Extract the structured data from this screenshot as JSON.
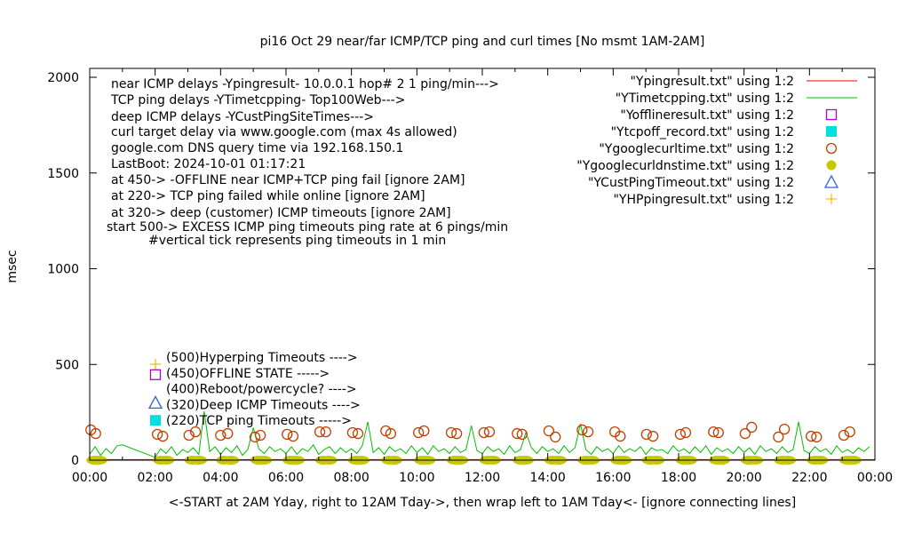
{
  "chart_data": {
    "type": "line",
    "title": "pi16 Oct 29  near/far ICMP/TCP ping and curl times [No msmt 1AM-2AM]",
    "xlabel": "<-START at 2AM Yday, right to 12AM Tday->, then wrap left to 1AM Tday<- [ignore connecting lines]",
    "ylabel": "msec",
    "xlim": [
      "00:00",
      "24:00"
    ],
    "ylim": [
      0,
      2000
    ],
    "x_ticks": [
      "00:00",
      "02:00",
      "04:00",
      "06:00",
      "08:00",
      "10:00",
      "12:00",
      "14:00",
      "16:00",
      "18:00",
      "20:00",
      "22:00",
      "00:00"
    ],
    "y_ticks": [
      0,
      500,
      1000,
      1500,
      2000
    ],
    "grid": false,
    "legend_position": "top-right",
    "annotations": [
      "near ICMP delays -Ypingresult- 10.0.0.1 hop# 2 1 ping/min--->",
      "TCP ping delays -YTimetcpping- Top100Web--->",
      "deep ICMP delays -YCustPingSiteTimes--->",
      "curl target delay via www.google.com (max 4s allowed)",
      "google.com DNS query time via 192.168.150.1",
      "LastBoot: 2024-10-01 01:17:21",
      "at 450-> -OFFLINE near ICMP+TCP ping fail [ignore 2AM]",
      "at 220-> TCP ping failed while online [ignore 2AM]",
      "at 320-> deep (customer) ICMP timeouts [ignore 2AM]",
      "start 500-> EXCESS ICMP ping timeouts ping rate at 6 pings/min",
      "#vertical tick represents ping timeouts in 1 min"
    ],
    "marker_key": [
      {
        "label": "(500)Hyperping Timeouts ---->",
        "marker": "plus",
        "color": "#f5b800"
      },
      {
        "label": "(450)OFFLINE STATE ----->",
        "marker": "open-square",
        "color": "#b000e0"
      },
      {
        "label": "(400)Reboot/powercycle? ---->",
        "marker": "none",
        "color": ""
      },
      {
        "label": "(320)Deep ICMP Timeouts ---->",
        "marker": "open-triangle",
        "color": "#3060e0"
      },
      {
        "label": "(220)TCP ping Timeouts ----->",
        "marker": "filled-square",
        "color": "#00e0e0"
      }
    ],
    "series": [
      {
        "name": "\"Ypingresult.txt\" using 1:2",
        "style": "line",
        "color": "#ff0000",
        "interval_minutes": 60,
        "values": [
          3,
          3,
          3,
          3,
          3,
          3,
          3,
          3,
          3,
          3,
          3,
          3,
          3,
          3,
          3,
          3,
          3,
          3,
          3,
          3,
          3,
          3,
          3,
          3,
          3
        ]
      },
      {
        "name": "\"YTimetcpping.txt\" using 1:2",
        "style": "line",
        "color": "#00c000",
        "interval_minutes": 10,
        "values": [
          30,
          70,
          25,
          60,
          35,
          75,
          80,
          null,
          null,
          null,
          null,
          null,
          15,
          60,
          35,
          70,
          25,
          55,
          40,
          65,
          30,
          255,
          45,
          70,
          30,
          65,
          40,
          75,
          25,
          55,
          170,
          60,
          35,
          70,
          45,
          60,
          35,
          70,
          30,
          60,
          45,
          80,
          30,
          55,
          70,
          35,
          65,
          40,
          60,
          35,
          75,
          200,
          40,
          65,
          30,
          70,
          45,
          60,
          35,
          75,
          40,
          65,
          30,
          75,
          45,
          60,
          35,
          70,
          40,
          55,
          180,
          50,
          35,
          70,
          45,
          60,
          30,
          75,
          40,
          55,
          145,
          65,
          35,
          70,
          45,
          60,
          35,
          75,
          40,
          65,
          190,
          55,
          30,
          70,
          45,
          60,
          35,
          75,
          40,
          60,
          45,
          70,
          30,
          65,
          50,
          55,
          35,
          75,
          45,
          60,
          35,
          70,
          40,
          75,
          30,
          65,
          45,
          60,
          35,
          70,
          40,
          65,
          30,
          75,
          45,
          60,
          35,
          70,
          40,
          55,
          200,
          50,
          35,
          70,
          45,
          60,
          30,
          75,
          40,
          55,
          35,
          65,
          45,
          70
        ]
      },
      {
        "name": "\"Yofflineresult.txt\" using 1:2",
        "style": "open-square",
        "color": "#b000e0",
        "points": []
      },
      {
        "name": "\"Ytcpoff_record.txt\" using 1:2",
        "style": "filled-square",
        "color": "#00e0e0",
        "points": []
      },
      {
        "name": "\"Ygooglecurltime.txt\" using 1:2",
        "style": "open-circle",
        "color": "#c04000",
        "points": [
          [
            "00:02",
            158
          ],
          [
            "00:11",
            139
          ],
          [
            "02:04",
            135
          ],
          [
            "02:14",
            125
          ],
          [
            "03:02",
            130
          ],
          [
            "03:14",
            148
          ],
          [
            "04:00",
            130
          ],
          [
            "04:13",
            139
          ],
          [
            "05:03",
            121
          ],
          [
            "05:13",
            130
          ],
          [
            "06:02",
            135
          ],
          [
            "06:13",
            125
          ],
          [
            "07:02",
            148
          ],
          [
            "07:13",
            148
          ],
          [
            "08:02",
            144
          ],
          [
            "08:12",
            139
          ],
          [
            "09:03",
            153
          ],
          [
            "09:12",
            139
          ],
          [
            "10:03",
            144
          ],
          [
            "10:13",
            153
          ],
          [
            "11:03",
            144
          ],
          [
            "11:13",
            139
          ],
          [
            "12:03",
            144
          ],
          [
            "12:13",
            148
          ],
          [
            "13:04",
            139
          ],
          [
            "13:13",
            135
          ],
          [
            "14:02",
            153
          ],
          [
            "14:14",
            121
          ],
          [
            "15:03",
            158
          ],
          [
            "15:14",
            148
          ],
          [
            "16:03",
            148
          ],
          [
            "16:13",
            125
          ],
          [
            "17:01",
            135
          ],
          [
            "17:13",
            125
          ],
          [
            "18:03",
            135
          ],
          [
            "18:13",
            144
          ],
          [
            "19:04",
            148
          ],
          [
            "19:13",
            144
          ],
          [
            "20:02",
            139
          ],
          [
            "20:14",
            172
          ],
          [
            "21:03",
            121
          ],
          [
            "21:14",
            162
          ],
          [
            "22:03",
            125
          ],
          [
            "22:13",
            121
          ],
          [
            "23:03",
            130
          ],
          [
            "23:14",
            148
          ]
        ]
      },
      {
        "name": "\"Ygooglecurldnstime.txt\" using 1:2",
        "style": "filled-circle",
        "color": "#c8c800",
        "points": [
          [
            "00:02",
            0
          ],
          [
            "00:11",
            0
          ],
          [
            "02:04",
            0
          ],
          [
            "02:14",
            0
          ],
          [
            "03:02",
            0
          ],
          [
            "03:14",
            0
          ],
          [
            "04:00",
            0
          ],
          [
            "04:13",
            0
          ],
          [
            "05:03",
            0
          ],
          [
            "05:13",
            0
          ],
          [
            "06:02",
            0
          ],
          [
            "06:13",
            0
          ],
          [
            "07:02",
            0
          ],
          [
            "07:13",
            0
          ],
          [
            "08:02",
            0
          ],
          [
            "08:12",
            0
          ],
          [
            "09:03",
            0
          ],
          [
            "09:12",
            0
          ],
          [
            "10:03",
            0
          ],
          [
            "10:13",
            0
          ],
          [
            "11:03",
            0
          ],
          [
            "11:13",
            0
          ],
          [
            "12:03",
            0
          ],
          [
            "12:13",
            0
          ],
          [
            "13:04",
            0
          ],
          [
            "13:13",
            0
          ],
          [
            "14:02",
            0
          ],
          [
            "14:14",
            0
          ],
          [
            "15:03",
            0
          ],
          [
            "15:14",
            0
          ],
          [
            "16:03",
            0
          ],
          [
            "16:13",
            0
          ],
          [
            "17:01",
            0
          ],
          [
            "17:13",
            0
          ],
          [
            "18:03",
            0
          ],
          [
            "18:13",
            0
          ],
          [
            "19:04",
            0
          ],
          [
            "19:13",
            0
          ],
          [
            "20:02",
            0
          ],
          [
            "20:14",
            0
          ],
          [
            "21:03",
            0
          ],
          [
            "21:14",
            0
          ],
          [
            "22:03",
            0
          ],
          [
            "22:13",
            0
          ],
          [
            "23:03",
            0
          ],
          [
            "23:14",
            0
          ]
        ]
      },
      {
        "name": "\"YCustPingTimeout.txt\" using 1:2",
        "style": "open-triangle",
        "color": "#3060e0",
        "points": []
      },
      {
        "name": "\"YHPpingresult.txt\" using 1:2",
        "style": "plus",
        "color": "#f5b800",
        "points": []
      }
    ]
  }
}
